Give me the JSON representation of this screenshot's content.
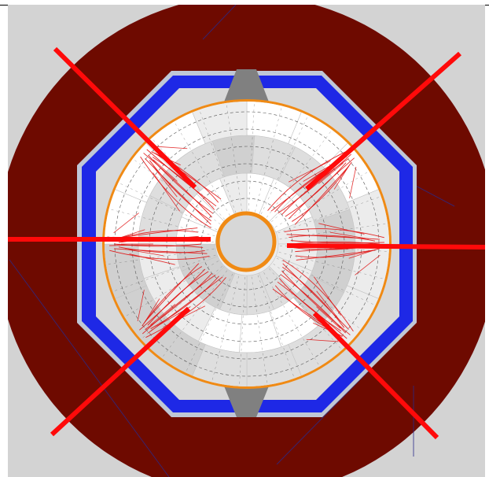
{
  "diagram": {
    "colors": {
      "page_bg": "#ffffff",
      "frame_bg": "#d3d3d3",
      "outer_region": "#6e0a00",
      "shield": "#1e28e6",
      "shield_outline": "#bfc7d6",
      "collar": "#d8d8d8",
      "ring": "#f08a14",
      "block_white": "#ffffff",
      "block_light": "#ececec",
      "block_mid": "#dedede",
      "block_dark": "#d0d0d0",
      "hub_fill": "#d7d7d7",
      "grid_line": "#555555",
      "beams": "#ff0a0a",
      "traces": "#e01010",
      "lug": "#808080",
      "construction_lines": "#2a2a8a"
    },
    "icons": {
      "outer_region": "dark-red-disc",
      "shield": "blue-octagon-band",
      "core": "segmented-circular-core",
      "hub": "central-hub-circle",
      "beams": "radial-red-beams",
      "traces": "red-branching-traces",
      "lugs": "grey-trapezoid-lugs"
    },
    "beam_count": 6,
    "segment_count": 16,
    "lug_count": 2
  }
}
